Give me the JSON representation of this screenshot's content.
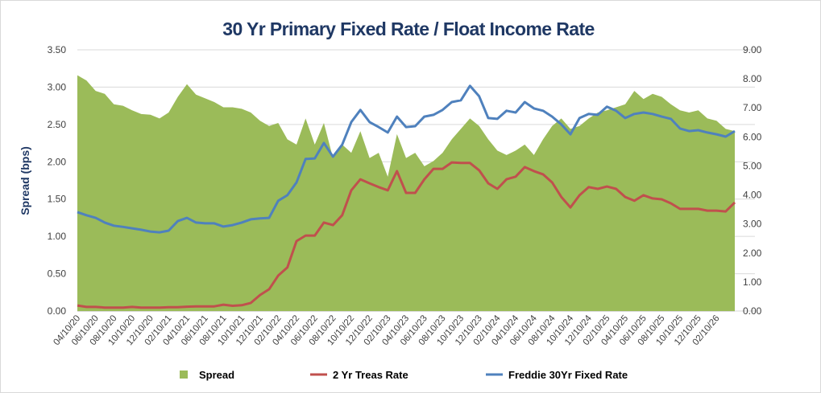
{
  "chart_data": {
    "type": "area+line",
    "title": "30 Yr Primary Fixed Rate / Float Income Rate",
    "ylabel_left": "Spread (bps)",
    "ylim_left": [
      0,
      3.5
    ],
    "yticks_left": [
      "0.00",
      "0.50",
      "1.00",
      "1.50",
      "2.00",
      "2.50",
      "3.00",
      "3.50"
    ],
    "ylim_right": [
      0,
      9
    ],
    "yticks_right": [
      "0.00",
      "1.00",
      "2.00",
      "3.00",
      "4.00",
      "5.00",
      "6.00",
      "7.00",
      "8.00",
      "9.00"
    ],
    "xtick_labels": [
      "04/10/20",
      "06/10/20",
      "08/10/20",
      "10/10/20",
      "12/10/20",
      "02/10/21",
      "04/10/21",
      "06/10/21",
      "08/10/21",
      "10/10/21",
      "12/10/21",
      "02/10/22",
      "04/10/22",
      "06/10/22",
      "08/10/22",
      "10/10/22",
      "12/10/22",
      "02/10/23",
      "04/10/23",
      "06/10/23",
      "08/10/23",
      "10/10/23",
      "12/10/23",
      "02/10/24",
      "04/10/24",
      "06/10/24",
      "08/10/24",
      "10/10/24",
      "12/10/24",
      "02/10/25",
      "04/10/25",
      "06/10/25",
      "08/10/25",
      "10/10/25",
      "12/10/25",
      "02/10/26"
    ],
    "x_start": "04/10/20",
    "x_step": "monthly",
    "grid": true,
    "legend_position": "bottom",
    "series": [
      {
        "name": "Spread",
        "type": "area",
        "axis": "left",
        "color": "#9bbb59",
        "values": [
          3.16,
          3.09,
          2.95,
          2.91,
          2.77,
          2.75,
          2.69,
          2.64,
          2.63,
          2.58,
          2.66,
          2.87,
          3.04,
          2.9,
          2.85,
          2.8,
          2.73,
          2.73,
          2.71,
          2.66,
          2.55,
          2.48,
          2.52,
          2.3,
          2.23,
          2.58,
          2.23,
          2.52,
          2.05,
          2.23,
          2.12,
          2.41,
          2.05,
          2.12,
          1.8,
          2.37,
          2.05,
          2.12,
          1.94,
          2.01,
          2.12,
          2.3,
          2.44,
          2.58,
          2.48,
          2.3,
          2.15,
          2.09,
          2.15,
          2.23,
          2.09,
          2.3,
          2.48,
          2.58,
          2.44,
          2.48,
          2.58,
          2.66,
          2.69,
          2.73,
          2.77,
          2.95,
          2.84,
          2.91,
          2.87,
          2.77,
          2.69,
          2.66,
          2.69,
          2.58,
          2.55,
          2.44,
          2.41
        ]
      },
      {
        "name": "2 Yr Treas Rate",
        "type": "line",
        "axis": "right",
        "color": "#c0504d",
        "values": [
          0.19,
          0.14,
          0.14,
          0.12,
          0.12,
          0.12,
          0.14,
          0.12,
          0.12,
          0.12,
          0.13,
          0.13,
          0.15,
          0.16,
          0.16,
          0.16,
          0.22,
          0.18,
          0.2,
          0.28,
          0.55,
          0.75,
          1.22,
          1.5,
          2.41,
          2.6,
          2.6,
          3.05,
          2.96,
          3.3,
          4.16,
          4.54,
          4.4,
          4.27,
          4.16,
          4.82,
          4.07,
          4.07,
          4.54,
          4.9,
          4.9,
          5.12,
          5.1,
          5.1,
          4.85,
          4.4,
          4.21,
          4.54,
          4.63,
          4.96,
          4.82,
          4.71,
          4.43,
          3.93,
          3.57,
          3.99,
          4.27,
          4.21,
          4.29,
          4.21,
          3.93,
          3.8,
          3.99,
          3.88,
          3.85,
          3.71,
          3.52,
          3.52,
          3.52,
          3.46,
          3.46,
          3.43,
          3.74
        ]
      },
      {
        "name": "Freddie 30Yr Fixed Rate",
        "type": "line",
        "axis": "right",
        "color": "#4f81bd",
        "values": [
          3.41,
          3.3,
          3.21,
          3.05,
          2.94,
          2.9,
          2.85,
          2.8,
          2.74,
          2.71,
          2.77,
          3.1,
          3.21,
          3.05,
          3.02,
          3.02,
          2.91,
          2.96,
          3.05,
          3.16,
          3.19,
          3.21,
          3.8,
          3.99,
          4.43,
          5.24,
          5.26,
          5.79,
          5.32,
          5.73,
          6.51,
          6.93,
          6.51,
          6.34,
          6.15,
          6.7,
          6.34,
          6.37,
          6.7,
          6.76,
          6.93,
          7.2,
          7.26,
          7.76,
          7.4,
          6.65,
          6.62,
          6.9,
          6.84,
          7.2,
          6.98,
          6.9,
          6.7,
          6.43,
          6.09,
          6.65,
          6.79,
          6.76,
          7.04,
          6.9,
          6.65,
          6.79,
          6.84,
          6.79,
          6.7,
          6.62,
          6.29,
          6.2,
          6.23,
          6.15,
          6.09,
          6.01,
          6.2
        ]
      }
    ]
  }
}
